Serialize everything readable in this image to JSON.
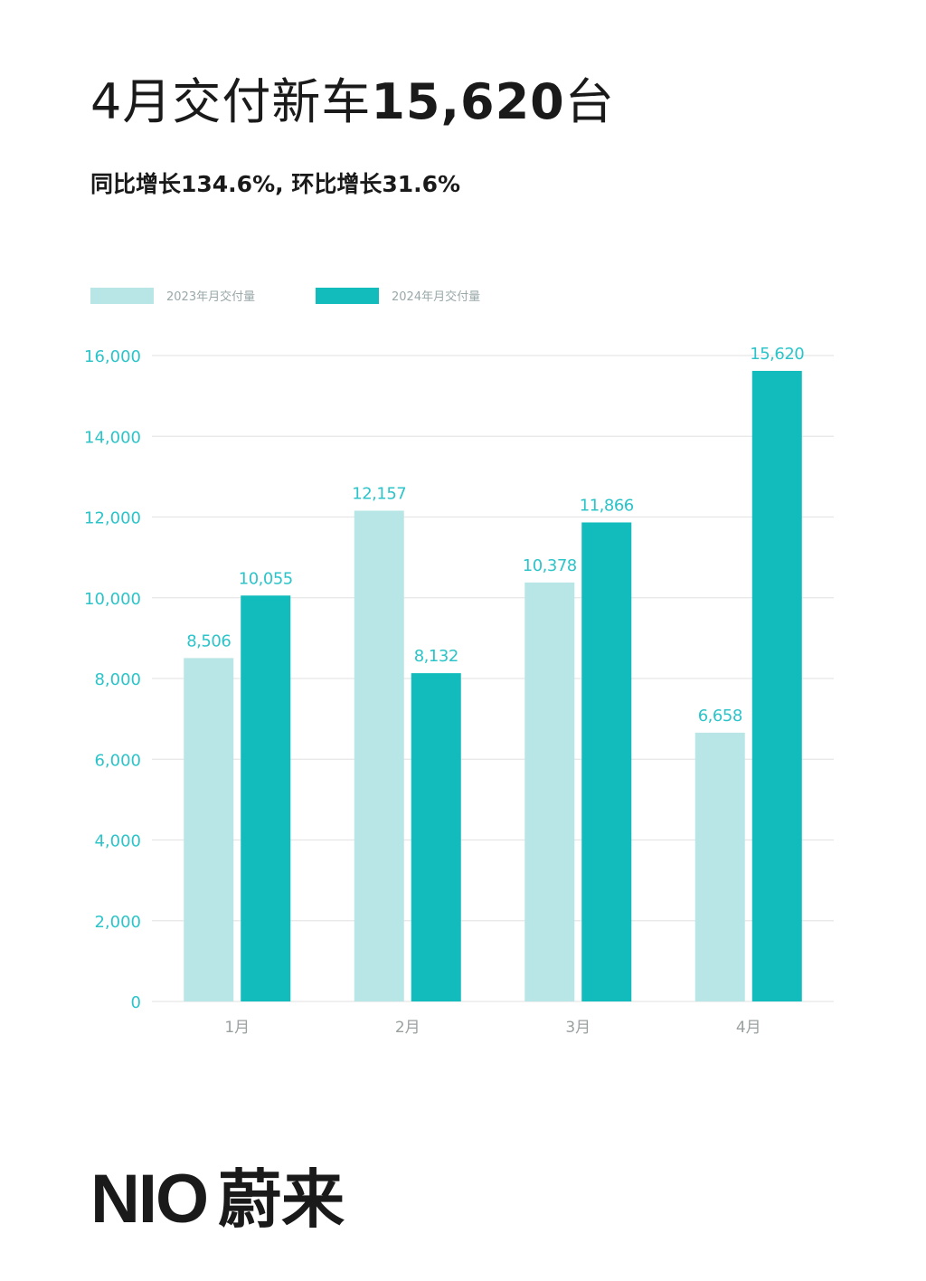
{
  "header": {
    "title_prefix": "4月交付新车",
    "title_number": "15,620",
    "title_suffix": "台",
    "subtitle": "同比增长134.6%, 环比增长31.6%"
  },
  "colors": {
    "series_2023": "#b8e6e6",
    "series_2024": "#13bcbc",
    "axis_label": "#2cc4c9",
    "grid": "#e6e6e6",
    "tick_x": "#9aa0a0"
  },
  "chart_data": {
    "type": "bar",
    "categories": [
      "1月",
      "2月",
      "3月",
      "4月"
    ],
    "series": [
      {
        "name": "2023年月交付量",
        "values": [
          8506,
          12157,
          10378,
          6658
        ],
        "labels": [
          "8,506",
          "12,157",
          "10,378",
          "6,658"
        ]
      },
      {
        "name": "2024年月交付量",
        "values": [
          10055,
          8132,
          11866,
          15620
        ],
        "labels": [
          "10,055",
          "8,132",
          "11,866",
          "15,620"
        ]
      }
    ],
    "ylim": [
      0,
      16000
    ],
    "yticks": [
      0,
      2000,
      4000,
      6000,
      8000,
      10000,
      12000,
      14000,
      16000
    ],
    "ytick_labels": [
      "0",
      "2,000",
      "4,000",
      "6,000",
      "8,000",
      "10,000",
      "12,000",
      "14,000",
      "16,000"
    ],
    "grid": true,
    "legend": "top-left"
  },
  "brand": {
    "en": "NIO",
    "zh": "蔚来"
  }
}
